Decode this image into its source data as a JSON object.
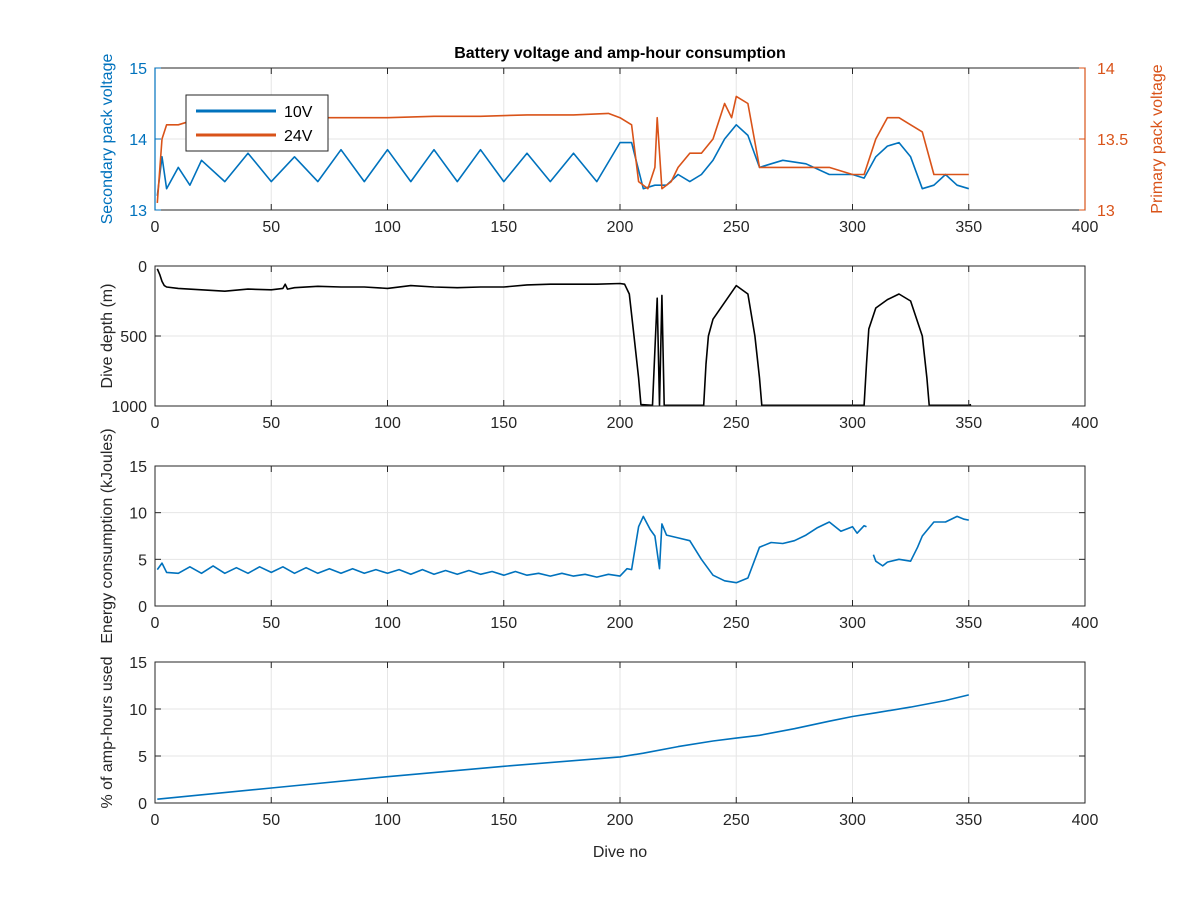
{
  "chart_data": [
    {
      "type": "line",
      "title": "Battery voltage and amp-hour consumption",
      "xlabel": "",
      "xlim": [
        0,
        400
      ],
      "xticks": [
        0,
        50,
        100,
        150,
        200,
        250,
        300,
        350,
        400
      ],
      "ylabel": "Secondary pack voltage",
      "ylim": [
        13,
        15
      ],
      "yticks": [
        13,
        14,
        15
      ],
      "y2label": "Primary pack voltage",
      "y2lim": [
        13,
        14
      ],
      "y2ticks": [
        13,
        13.5,
        14
      ],
      "y2tick_labels": [
        "13",
        "13.5",
        "14"
      ],
      "grid": true,
      "legend_position": "top-left",
      "colors": {
        "left_axis": "#0072BD",
        "right_axis": "#D95319"
      },
      "series": [
        {
          "name": "10V",
          "axis": "left",
          "color": "#0072BD",
          "x": [
            1,
            3,
            5,
            10,
            15,
            20,
            30,
            40,
            50,
            60,
            70,
            80,
            90,
            100,
            110,
            120,
            130,
            140,
            150,
            160,
            170,
            180,
            190,
            200,
            205,
            210,
            215,
            220,
            225,
            230,
            235,
            240,
            245,
            250,
            255,
            260,
            265,
            270,
            280,
            290,
            300,
            305,
            310,
            315,
            320,
            325,
            330,
            335,
            340,
            345,
            350
          ],
          "y": [
            13.2,
            13.75,
            13.3,
            13.6,
            13.35,
            13.7,
            13.4,
            13.8,
            13.4,
            13.75,
            13.4,
            13.85,
            13.4,
            13.85,
            13.4,
            13.85,
            13.4,
            13.85,
            13.4,
            13.8,
            13.4,
            13.8,
            13.4,
            13.95,
            13.95,
            13.3,
            13.35,
            13.35,
            13.5,
            13.4,
            13.5,
            13.7,
            14.0,
            14.2,
            14.05,
            13.6,
            13.65,
            13.7,
            13.65,
            13.5,
            13.5,
            13.45,
            13.75,
            13.9,
            13.95,
            13.75,
            13.3,
            13.35,
            13.5,
            13.35,
            13.3
          ]
        },
        {
          "name": "24V",
          "axis": "right",
          "color": "#D95319",
          "x": [
            1,
            3,
            5,
            7,
            10,
            20,
            40,
            60,
            80,
            100,
            120,
            140,
            160,
            180,
            195,
            200,
            205,
            208,
            212,
            215,
            216,
            218,
            222,
            225,
            230,
            235,
            240,
            245,
            248,
            250,
            255,
            260,
            265,
            270,
            280,
            290,
            300,
            305,
            310,
            315,
            320,
            325,
            330,
            335,
            340,
            345,
            350
          ],
          "y": [
            13.05,
            13.5,
            13.6,
            13.6,
            13.6,
            13.65,
            13.65,
            13.65,
            13.65,
            13.65,
            13.66,
            13.66,
            13.67,
            13.67,
            13.68,
            13.65,
            13.6,
            13.2,
            13.15,
            13.3,
            13.65,
            13.15,
            13.2,
            13.3,
            13.4,
            13.4,
            13.5,
            13.75,
            13.65,
            13.8,
            13.75,
            13.3,
            13.3,
            13.3,
            13.3,
            13.3,
            13.25,
            13.25,
            13.5,
            13.65,
            13.65,
            13.6,
            13.55,
            13.25,
            13.25,
            13.25,
            13.25
          ]
        }
      ]
    },
    {
      "type": "line",
      "title": "",
      "xlabel": "",
      "xlim": [
        0,
        400
      ],
      "xticks": [
        0,
        50,
        100,
        150,
        200,
        250,
        300,
        350,
        400
      ],
      "ylabel": "Dive depth (m)",
      "ylim": [
        0,
        1000
      ],
      "y_reversed": true,
      "yticks": [
        0,
        500,
        1000
      ],
      "grid": true,
      "series": [
        {
          "color": "#000000",
          "x": [
            1,
            2,
            3,
            4,
            5,
            10,
            20,
            30,
            40,
            50,
            55,
            56,
            57,
            60,
            70,
            80,
            90,
            100,
            110,
            120,
            130,
            140,
            150,
            160,
            170,
            180,
            190,
            200,
            202,
            204,
            206,
            208,
            209,
            214,
            215,
            216,
            217,
            218,
            219,
            220,
            225,
            230,
            236,
            237,
            238,
            240,
            245,
            250,
            255,
            258,
            260,
            261,
            262,
            270,
            280,
            290,
            300,
            305,
            306,
            307,
            310,
            315,
            320,
            325,
            330,
            332,
            333,
            334,
            340,
            345,
            350,
            351
          ],
          "y": [
            20,
            60,
            110,
            140,
            150,
            160,
            170,
            180,
            165,
            170,
            160,
            130,
            165,
            155,
            145,
            150,
            150,
            160,
            140,
            150,
            155,
            150,
            150,
            135,
            130,
            130,
            130,
            125,
            130,
            200,
            500,
            800,
            990,
            995,
            600,
            230,
            995,
            210,
            995,
            995,
            995,
            995,
            995,
            700,
            500,
            380,
            260,
            140,
            200,
            500,
            800,
            995,
            995,
            995,
            995,
            995,
            995,
            995,
            700,
            450,
            300,
            240,
            200,
            250,
            500,
            800,
            995,
            995,
            995,
            995,
            995,
            990
          ]
        }
      ]
    },
    {
      "type": "line",
      "title": "",
      "xlabel": "",
      "xlim": [
        0,
        400
      ],
      "xticks": [
        0,
        50,
        100,
        150,
        200,
        250,
        300,
        350,
        400
      ],
      "ylabel": "Energy consumption (kJoules)",
      "ylim": [
        0,
        15
      ],
      "yticks": [
        0,
        5,
        10,
        15
      ],
      "grid": true,
      "series": [
        {
          "color": "#0072BD",
          "segments": [
            {
              "x": [
                1,
                3,
                5,
                10,
                15,
                20,
                25,
                30,
                35,
                40,
                45,
                50,
                55,
                60,
                65,
                70,
                75,
                80,
                85,
                90,
                95,
                100,
                105,
                110,
                115,
                120,
                125,
                130,
                135,
                140,
                145,
                150,
                155,
                160,
                165,
                170,
                175,
                180,
                185,
                190,
                195,
                200,
                203,
                205,
                208,
                210,
                213,
                215,
                217,
                218,
                220,
                225,
                230,
                235,
                240,
                245,
                250,
                255,
                260,
                265,
                270,
                275,
                280,
                285,
                290,
                295,
                300,
                302,
                305,
                306
              ],
              "y": [
                3.9,
                4.6,
                3.6,
                3.5,
                4.2,
                3.5,
                4.3,
                3.5,
                4.1,
                3.5,
                4.2,
                3.6,
                4.2,
                3.5,
                4.1,
                3.5,
                4.0,
                3.5,
                4.0,
                3.5,
                3.9,
                3.5,
                3.9,
                3.4,
                3.9,
                3.4,
                3.8,
                3.4,
                3.8,
                3.4,
                3.7,
                3.3,
                3.7,
                3.3,
                3.5,
                3.2,
                3.5,
                3.2,
                3.4,
                3.1,
                3.4,
                3.2,
                4.0,
                3.9,
                8.5,
                9.6,
                8.2,
                7.5,
                4.0,
                8.8,
                7.6,
                7.3,
                7.0,
                5.0,
                3.3,
                2.7,
                2.5,
                3.0,
                6.3,
                6.8,
                6.7,
                7.0,
                7.6,
                8.4,
                9.0,
                8.0,
                8.5,
                7.8,
                8.6,
                8.5
              ]
            },
            {
              "x": [
                309,
                310,
                313,
                315,
                320,
                325,
                328,
                330,
                335,
                340,
                345,
                348,
                350
              ],
              "y": [
                5.5,
                4.8,
                4.3,
                4.7,
                5.0,
                4.8,
                6.3,
                7.5,
                9.0,
                9.0,
                9.6,
                9.3,
                9.2
              ]
            }
          ]
        }
      ]
    },
    {
      "type": "line",
      "title": "",
      "xlabel": "Dive no",
      "xlim": [
        0,
        400
      ],
      "xticks": [
        0,
        50,
        100,
        150,
        200,
        250,
        300,
        350,
        400
      ],
      "ylabel": "% of amp-hours used",
      "ylim": [
        0,
        15
      ],
      "yticks": [
        0,
        5,
        10,
        15
      ],
      "grid": true,
      "series": [
        {
          "color": "#0072BD",
          "x": [
            1,
            50,
            100,
            150,
            200,
            210,
            225,
            240,
            250,
            260,
            275,
            290,
            300,
            310,
            325,
            340,
            350
          ],
          "y": [
            0.4,
            1.6,
            2.8,
            3.9,
            4.9,
            5.3,
            6.0,
            6.6,
            6.9,
            7.2,
            7.9,
            8.7,
            9.2,
            9.6,
            10.2,
            10.9,
            11.5
          ]
        }
      ]
    }
  ]
}
